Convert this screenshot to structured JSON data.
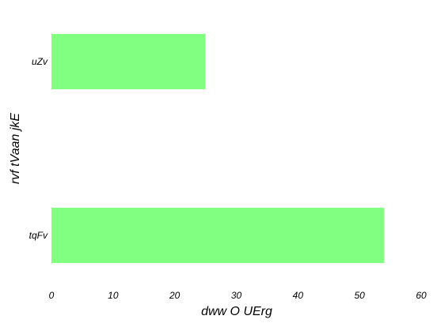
{
  "chart_data": {
    "type": "bar",
    "orientation": "horizontal",
    "categories": [
      "uZv",
      "tqFv"
    ],
    "values": [
      25,
      54
    ],
    "xlabel": "dww O UErg",
    "ylabel": "rvf tVaan jkE",
    "xlim": [
      0,
      60
    ],
    "xticks": [
      "0",
      "10",
      "20",
      "30",
      "40",
      "50",
      "60"
    ],
    "grid": false,
    "bar_color": "#80ff80"
  }
}
